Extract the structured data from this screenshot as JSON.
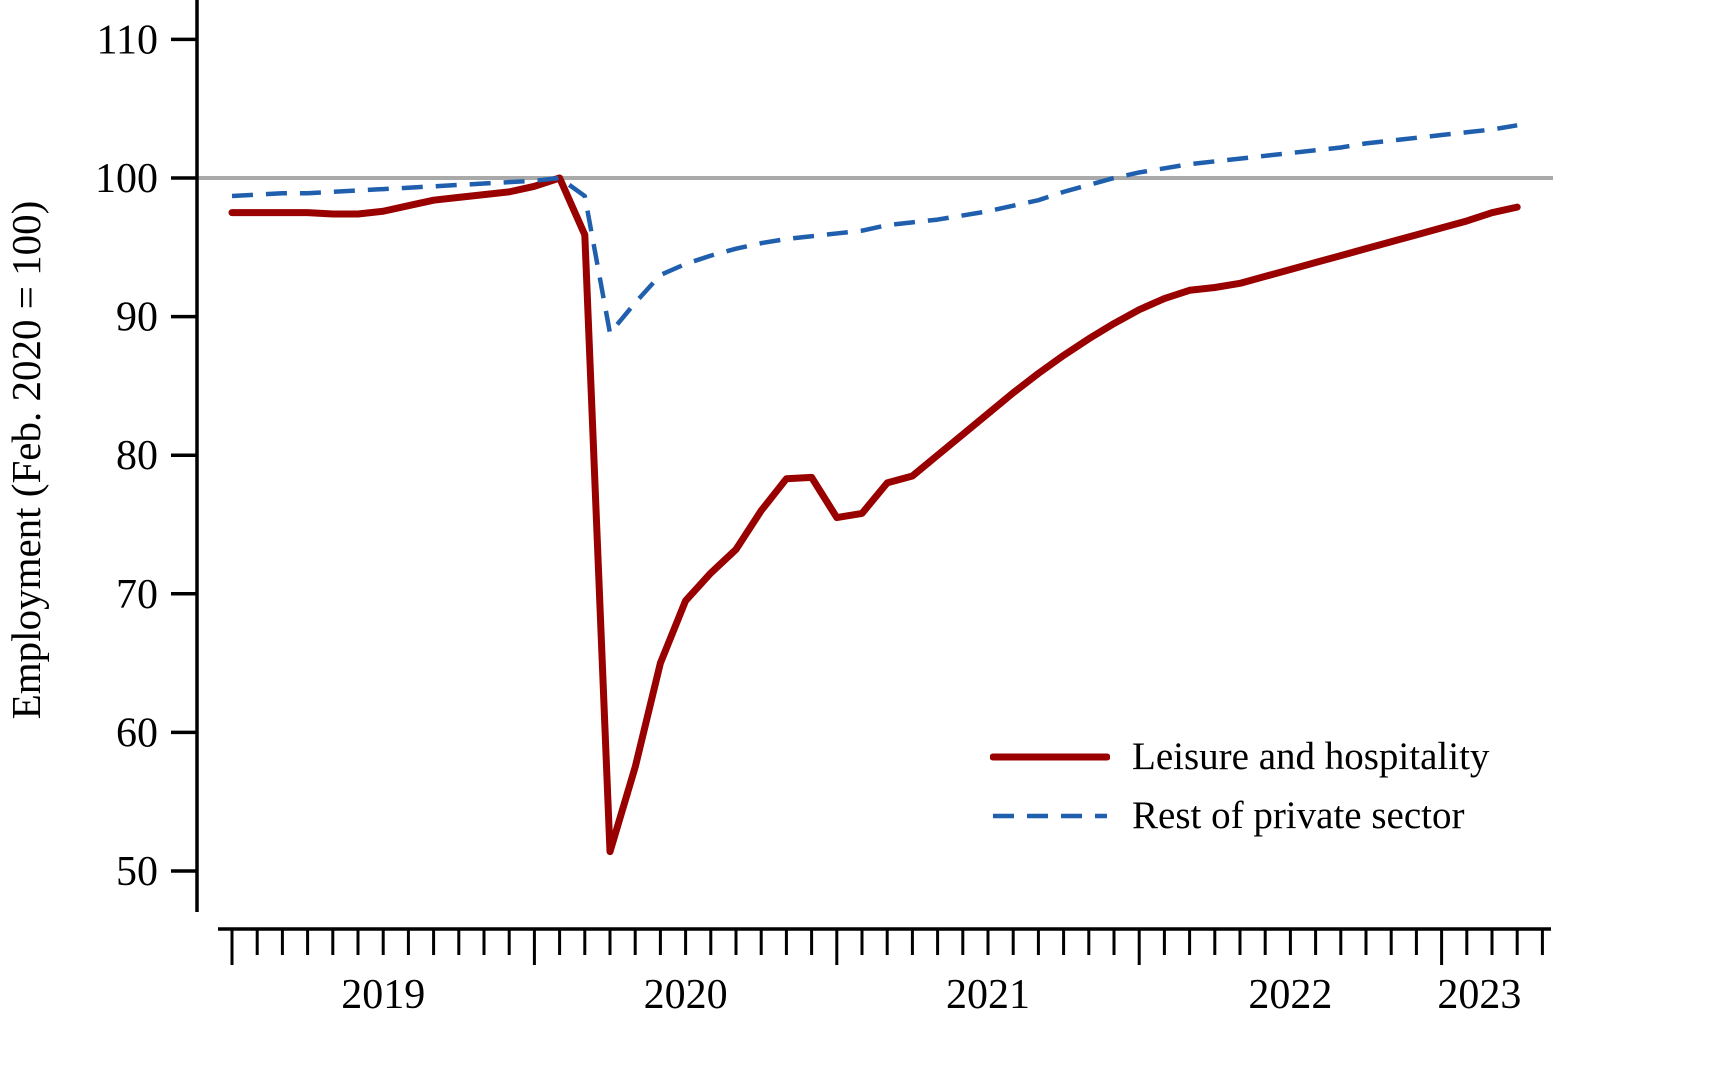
{
  "figure": {
    "y_axis_title": "Employment (Feb. 2020 = 100)"
  },
  "chart_data": {
    "type": "line",
    "x_frequency": "monthly",
    "x_start": "2019-01",
    "x_end": "2023-04",
    "x_year_labels": [
      "2019",
      "2020",
      "2021",
      "2022",
      "2023"
    ],
    "ylabel": "Employment (Feb. 2020 = 100)",
    "ylim": [
      46,
      113
    ],
    "yticks": [
      50,
      60,
      70,
      80,
      90,
      100,
      110
    ],
    "reference_line_y": 100,
    "reference_line_color": "#a9a9a9",
    "axis_color": "#000000",
    "grid": false,
    "legend_position": "inside-bottom-right",
    "series": [
      {
        "name": "Leisure and hospitality",
        "style": "solid",
        "color": "#990000",
        "values": [
          97.5,
          97.5,
          97.5,
          97.5,
          97.4,
          97.4,
          97.6,
          98.0,
          98.4,
          98.6,
          98.8,
          99.0,
          99.4,
          100.0,
          95.9,
          51.4,
          57.5,
          65.0,
          69.5,
          71.5,
          73.2,
          76.0,
          78.3,
          78.4,
          75.5,
          75.8,
          78.0,
          78.5,
          80.0,
          81.5,
          83.0,
          84.5,
          85.9,
          87.2,
          88.4,
          89.5,
          90.5,
          91.3,
          91.9,
          92.1,
          92.4,
          92.9,
          93.4,
          93.9,
          94.4,
          94.9,
          95.4,
          95.9,
          96.4,
          96.9,
          97.5,
          97.9
        ]
      },
      {
        "name": "Rest of private sector",
        "style": "dashed",
        "color": "#1f5fae",
        "values": [
          98.7,
          98.8,
          98.9,
          98.9,
          99.0,
          99.1,
          99.2,
          99.3,
          99.4,
          99.5,
          99.6,
          99.7,
          99.8,
          100.0,
          98.7,
          88.8,
          91.0,
          93.0,
          93.8,
          94.4,
          94.9,
          95.3,
          95.6,
          95.8,
          96.0,
          96.2,
          96.6,
          96.8,
          97.0,
          97.3,
          97.6,
          98.0,
          98.4,
          99.0,
          99.5,
          100.0,
          100.4,
          100.7,
          101.0,
          101.2,
          101.4,
          101.6,
          101.8,
          102.0,
          102.2,
          102.5,
          102.7,
          102.9,
          103.1,
          103.3,
          103.5,
          103.8
        ]
      }
    ]
  }
}
